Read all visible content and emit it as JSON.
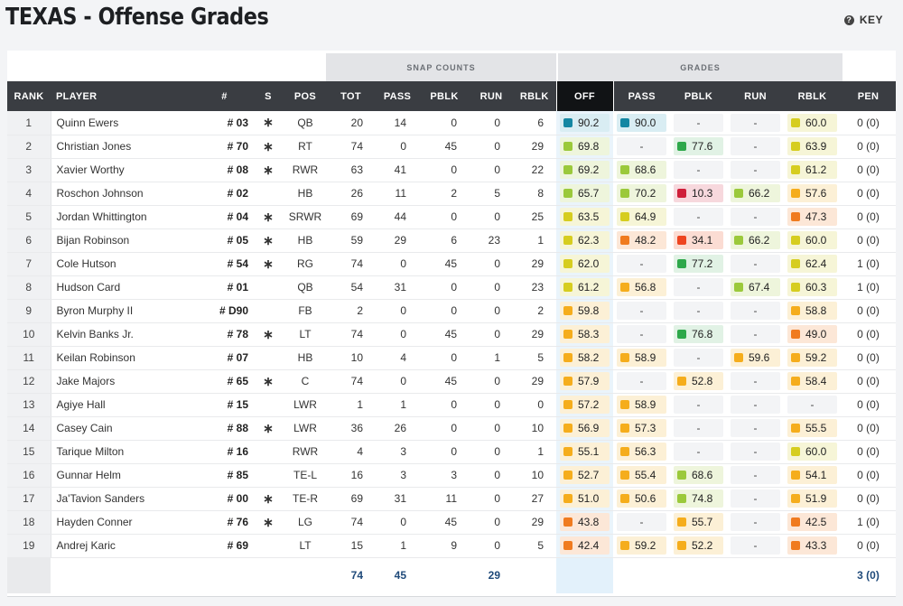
{
  "page": {
    "title": "TEXAS - Offense Grades",
    "key_label": "KEY",
    "key_icon": "question-icon"
  },
  "groups": {
    "snap_counts": "SNAP COUNTS",
    "grades": "GRADES"
  },
  "columns": {
    "rank": "RANK",
    "player": "PLAYER",
    "num": "#",
    "s": "S",
    "pos": "POS",
    "tot": "TOT",
    "pass": "PASS",
    "pblk": "PBLK",
    "run": "RUN",
    "rblk": "RBLK",
    "off": "OFF",
    "g_pass": "PASS",
    "g_pblk": "PBLK",
    "g_run": "RUN",
    "g_rblk": "RBLK",
    "pen": "PEN"
  },
  "grade_colors": {
    "elite": "#1487a3",
    "high": "#2ea84a",
    "good": "#9bc93b",
    "avg": "#d6cd1f",
    "below": "#f5ad1c",
    "low": "#f07b1f",
    "poor": "#ee4420",
    "bad": "#cf1f3a"
  },
  "grade_bgs": {
    "elite": "#d9edf3",
    "high": "#e1f2e5",
    "good": "#eef5dc",
    "avg": "#f6f5d7",
    "below": "#fcf0d6",
    "low": "#fce7d7",
    "poor": "#fbdcd3",
    "bad": "#f7d8dd"
  },
  "dash": "-",
  "star_symbol": "∗",
  "rows": [
    {
      "rank": "1",
      "player": "Quinn Ewers",
      "num": "# 03",
      "s": true,
      "pos": "QB",
      "tot": "20",
      "pass": "14",
      "pblk": "0",
      "run": "0",
      "rblk": "6",
      "off": "90.2",
      "g_pass": "90.0",
      "g_pblk": null,
      "g_run": null,
      "g_rblk": "60.0",
      "pen": "0 (0)"
    },
    {
      "rank": "2",
      "player": "Christian Jones",
      "num": "# 70",
      "s": true,
      "pos": "RT",
      "tot": "74",
      "pass": "0",
      "pblk": "45",
      "run": "0",
      "rblk": "29",
      "off": "69.8",
      "g_pass": null,
      "g_pblk": "77.6",
      "g_run": null,
      "g_rblk": "63.9",
      "pen": "0 (0)"
    },
    {
      "rank": "3",
      "player": "Xavier Worthy",
      "num": "# 08",
      "s": true,
      "pos": "RWR",
      "tot": "63",
      "pass": "41",
      "pblk": "0",
      "run": "0",
      "rblk": "22",
      "off": "69.2",
      "g_pass": "68.6",
      "g_pblk": null,
      "g_run": null,
      "g_rblk": "61.2",
      "pen": "0 (0)"
    },
    {
      "rank": "4",
      "player": "Roschon Johnson",
      "num": "# 02",
      "s": false,
      "pos": "HB",
      "tot": "26",
      "pass": "11",
      "pblk": "2",
      "run": "5",
      "rblk": "8",
      "off": "65.7",
      "g_pass": "70.2",
      "g_pblk": "10.3",
      "g_run": "66.2",
      "g_rblk": "57.6",
      "pen": "0 (0)"
    },
    {
      "rank": "5",
      "player": "Jordan Whittington",
      "num": "# 04",
      "s": true,
      "pos": "SRWR",
      "tot": "69",
      "pass": "44",
      "pblk": "0",
      "run": "0",
      "rblk": "25",
      "off": "63.5",
      "g_pass": "64.9",
      "g_pblk": null,
      "g_run": null,
      "g_rblk": "47.3",
      "pen": "0 (0)"
    },
    {
      "rank": "6",
      "player": "Bijan Robinson",
      "num": "# 05",
      "s": true,
      "pos": "HB",
      "tot": "59",
      "pass": "29",
      "pblk": "6",
      "run": "23",
      "rblk": "1",
      "off": "62.3",
      "g_pass": "48.2",
      "g_pblk": "34.1",
      "g_run": "66.2",
      "g_rblk": "60.0",
      "pen": "0 (0)"
    },
    {
      "rank": "7",
      "player": "Cole Hutson",
      "num": "# 54",
      "s": true,
      "pos": "RG",
      "tot": "74",
      "pass": "0",
      "pblk": "45",
      "run": "0",
      "rblk": "29",
      "off": "62.0",
      "g_pass": null,
      "g_pblk": "77.2",
      "g_run": null,
      "g_rblk": "62.4",
      "pen": "1 (0)"
    },
    {
      "rank": "8",
      "player": "Hudson Card",
      "num": "# 01",
      "s": false,
      "pos": "QB",
      "tot": "54",
      "pass": "31",
      "pblk": "0",
      "run": "0",
      "rblk": "23",
      "off": "61.2",
      "g_pass": "56.8",
      "g_pblk": null,
      "g_run": "67.4",
      "g_rblk": "60.3",
      "pen": "1 (0)"
    },
    {
      "rank": "9",
      "player": "Byron Murphy II",
      "num": "# D90",
      "s": false,
      "pos": "FB",
      "tot": "2",
      "pass": "0",
      "pblk": "0",
      "run": "0",
      "rblk": "2",
      "off": "59.8",
      "g_pass": null,
      "g_pblk": null,
      "g_run": null,
      "g_rblk": "58.8",
      "pen": "0 (0)"
    },
    {
      "rank": "10",
      "player": "Kelvin Banks Jr.",
      "num": "# 78",
      "s": true,
      "pos": "LT",
      "tot": "74",
      "pass": "0",
      "pblk": "45",
      "run": "0",
      "rblk": "29",
      "off": "58.3",
      "g_pass": null,
      "g_pblk": "76.8",
      "g_run": null,
      "g_rblk": "49.0",
      "pen": "0 (0)"
    },
    {
      "rank": "11",
      "player": "Keilan Robinson",
      "num": "# 07",
      "s": false,
      "pos": "HB",
      "tot": "10",
      "pass": "4",
      "pblk": "0",
      "run": "1",
      "rblk": "5",
      "off": "58.2",
      "g_pass": "58.9",
      "g_pblk": null,
      "g_run": "59.6",
      "g_rblk": "59.2",
      "pen": "0 (0)"
    },
    {
      "rank": "12",
      "player": "Jake Majors",
      "num": "# 65",
      "s": true,
      "pos": "C",
      "tot": "74",
      "pass": "0",
      "pblk": "45",
      "run": "0",
      "rblk": "29",
      "off": "57.9",
      "g_pass": null,
      "g_pblk": "52.8",
      "g_run": null,
      "g_rblk": "58.4",
      "pen": "0 (0)"
    },
    {
      "rank": "13",
      "player": "Agiye Hall",
      "num": "# 15",
      "s": false,
      "pos": "LWR",
      "tot": "1",
      "pass": "1",
      "pblk": "0",
      "run": "0",
      "rblk": "0",
      "off": "57.2",
      "g_pass": "58.9",
      "g_pblk": null,
      "g_run": null,
      "g_rblk": null,
      "pen": "0 (0)"
    },
    {
      "rank": "14",
      "player": "Casey Cain",
      "num": "# 88",
      "s": true,
      "pos": "LWR",
      "tot": "36",
      "pass": "26",
      "pblk": "0",
      "run": "0",
      "rblk": "10",
      "off": "56.9",
      "g_pass": "57.3",
      "g_pblk": null,
      "g_run": null,
      "g_rblk": "55.5",
      "pen": "0 (0)"
    },
    {
      "rank": "15",
      "player": "Tarique Milton",
      "num": "# 16",
      "s": false,
      "pos": "RWR",
      "tot": "4",
      "pass": "3",
      "pblk": "0",
      "run": "0",
      "rblk": "1",
      "off": "55.1",
      "g_pass": "56.3",
      "g_pblk": null,
      "g_run": null,
      "g_rblk": "60.0",
      "pen": "0 (0)"
    },
    {
      "rank": "16",
      "player": "Gunnar Helm",
      "num": "# 85",
      "s": false,
      "pos": "TE-L",
      "tot": "16",
      "pass": "3",
      "pblk": "3",
      "run": "0",
      "rblk": "10",
      "off": "52.7",
      "g_pass": "55.4",
      "g_pblk": "68.6",
      "g_run": null,
      "g_rblk": "54.1",
      "pen": "0 (0)"
    },
    {
      "rank": "17",
      "player": "Ja'Tavion Sanders",
      "num": "# 00",
      "s": true,
      "pos": "TE-R",
      "tot": "69",
      "pass": "31",
      "pblk": "11",
      "run": "0",
      "rblk": "27",
      "off": "51.0",
      "g_pass": "50.6",
      "g_pblk": "74.8",
      "g_run": null,
      "g_rblk": "51.9",
      "pen": "0 (0)"
    },
    {
      "rank": "18",
      "player": "Hayden Conner",
      "num": "# 76",
      "s": true,
      "pos": "LG",
      "tot": "74",
      "pass": "0",
      "pblk": "45",
      "run": "0",
      "rblk": "29",
      "off": "43.8",
      "g_pass": null,
      "g_pblk": "55.7",
      "g_run": null,
      "g_rblk": "42.5",
      "pen": "1 (0)"
    },
    {
      "rank": "19",
      "player": "Andrej Karic",
      "num": "# 69",
      "s": false,
      "pos": "LT",
      "tot": "15",
      "pass": "1",
      "pblk": "9",
      "run": "0",
      "rblk": "5",
      "off": "42.4",
      "g_pass": "59.2",
      "g_pblk": "52.2",
      "g_run": null,
      "g_rblk": "43.3",
      "pen": "0 (0)"
    }
  ],
  "totals": {
    "tot": "74",
    "pass": "45",
    "run": "29",
    "pen": "3 (0)"
  }
}
